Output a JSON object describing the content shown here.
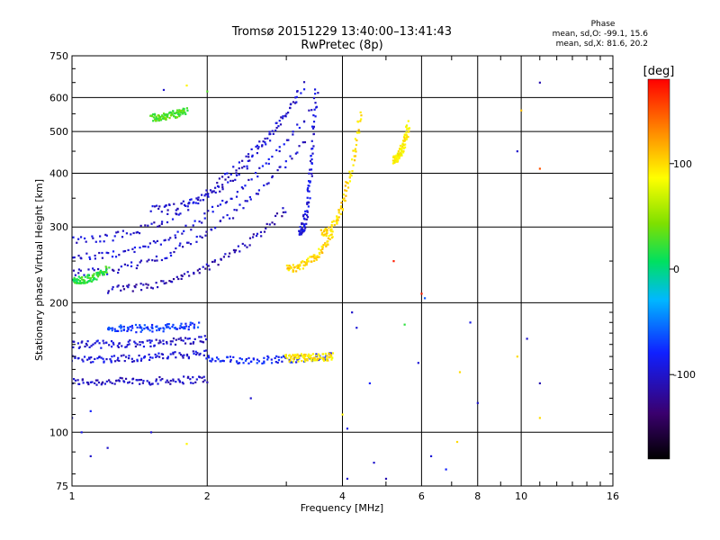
{
  "header": {
    "title_line1": "Tromsø 20151229 13:40:00–13:41:43",
    "title_line2": "RwPretec (8p)"
  },
  "stats": {
    "heading": "Phase",
    "line_o": "mean, sd,O: -99.1, 15.6",
    "line_x": "mean, sd,X:  81.6, 20.2"
  },
  "chart_data": {
    "type": "scatter",
    "xlabel": "Frequency [MHz]",
    "ylabel": "Stationary phase Virtual Height [km]",
    "x_scale": "log",
    "y_scale": "log",
    "xlim": [
      1,
      16
    ],
    "ylim": [
      75,
      750
    ],
    "x_ticks": [
      1,
      2,
      4,
      6,
      8,
      10,
      16
    ],
    "x_tick_labels": [
      "1",
      "2",
      "4",
      "6",
      "8",
      "10",
      "16"
    ],
    "y_ticks": [
      75,
      100,
      200,
      300,
      400,
      500,
      600,
      750
    ],
    "y_tick_labels": [
      "75",
      "100",
      "200",
      "300",
      "400",
      "500",
      "600",
      "750"
    ],
    "grid": true,
    "colorbar": {
      "label": "[deg]",
      "range": [
        -180,
        180
      ],
      "ticks": [
        100,
        0,
        -100
      ],
      "tick_labels": [
        "100",
        "0",
        "-100"
      ]
    },
    "traces": [
      {
        "f0": 1.0,
        "f1": 2.0,
        "h0": 131,
        "h1": 133,
        "phase": -105
      },
      {
        "f0": 1.0,
        "f1": 2.0,
        "h0": 148,
        "h1": 153,
        "phase": -95
      },
      {
        "f0": 1.0,
        "f1": 2.0,
        "h0": 160,
        "h1": 165,
        "phase": -100
      },
      {
        "f0": 1.2,
        "f1": 1.9,
        "h0": 174,
        "h1": 177,
        "phase": -70
      },
      {
        "f0": 2.0,
        "f1": 3.8,
        "h0": 147,
        "h1": 150,
        "phase": -80
      },
      {
        "f0": 3.0,
        "f1": 3.8,
        "h0": 149,
        "h1": 150,
        "phase": 95
      },
      {
        "f0": 1.0,
        "f1": 3.3,
        "h0": 235,
        "h1": 480,
        "phase": -100
      },
      {
        "f0": 1.0,
        "f1": 3.4,
        "h0": 255,
        "h1": 560,
        "phase": -95
      },
      {
        "f0": 1.0,
        "f1": 3.3,
        "h0": 280,
        "h1": 640,
        "phase": -100
      },
      {
        "f0": 1.2,
        "f1": 3.0,
        "h0": 215,
        "h1": 330,
        "phase": -110
      },
      {
        "f0": 1.5,
        "f1": 3.2,
        "h0": 330,
        "h1": 620,
        "phase": -100
      },
      {
        "f0": 3.2,
        "f1": 3.5,
        "h0": 290,
        "h1": 630,
        "phase": -95
      },
      {
        "f0": 3.6,
        "f1": 4.4,
        "h0": 290,
        "h1": 560,
        "phase": 100
      },
      {
        "f0": 3.0,
        "f1": 3.8,
        "h0": 240,
        "h1": 290,
        "phase": 100
      },
      {
        "f0": 1.0,
        "f1": 1.2,
        "h0": 225,
        "h1": 240,
        "phase": 20
      },
      {
        "f0": 1.5,
        "f1": 1.8,
        "h0": 540,
        "h1": 560,
        "phase": 30
      },
      {
        "f0": 5.2,
        "f1": 5.6,
        "h0": 430,
        "h1": 520,
        "phase": 90
      }
    ],
    "scatter_points": [
      {
        "x": 11.0,
        "y": 650,
        "phase": -110
      },
      {
        "x": 10.0,
        "y": 560,
        "phase": 110
      },
      {
        "x": 9.8,
        "y": 450,
        "phase": -100
      },
      {
        "x": 11.0,
        "y": 410,
        "phase": 150
      },
      {
        "x": 5.2,
        "y": 250,
        "phase": 170
      },
      {
        "x": 6.0,
        "y": 210,
        "phase": 170
      },
      {
        "x": 6.1,
        "y": 205,
        "phase": -60
      },
      {
        "x": 5.5,
        "y": 178,
        "phase": 20
      },
      {
        "x": 4.3,
        "y": 175,
        "phase": -95
      },
      {
        "x": 4.2,
        "y": 190,
        "phase": -100
      },
      {
        "x": 4.6,
        "y": 130,
        "phase": -80
      },
      {
        "x": 7.7,
        "y": 180,
        "phase": -90
      },
      {
        "x": 5.9,
        "y": 145,
        "phase": -95
      },
      {
        "x": 7.3,
        "y": 138,
        "phase": 100
      },
      {
        "x": 7.2,
        "y": 95,
        "phase": 100
      },
      {
        "x": 8.0,
        "y": 117,
        "phase": -100
      },
      {
        "x": 9.8,
        "y": 150,
        "phase": 100
      },
      {
        "x": 10.3,
        "y": 165,
        "phase": -100
      },
      {
        "x": 11.0,
        "y": 130,
        "phase": -110
      },
      {
        "x": 11.0,
        "y": 108,
        "phase": 100
      },
      {
        "x": 6.3,
        "y": 88,
        "phase": -95
      },
      {
        "x": 6.8,
        "y": 82,
        "phase": -80
      },
      {
        "x": 4.1,
        "y": 102,
        "phase": -90
      },
      {
        "x": 4.0,
        "y": 110,
        "phase": 90
      },
      {
        "x": 4.7,
        "y": 85,
        "phase": -100
      },
      {
        "x": 5.0,
        "y": 78,
        "phase": -110
      },
      {
        "x": 4.1,
        "y": 78,
        "phase": -100
      },
      {
        "x": 2.0,
        "y": 620,
        "phase": 30
      },
      {
        "x": 1.8,
        "y": 640,
        "phase": 90
      },
      {
        "x": 1.6,
        "y": 625,
        "phase": -100
      },
      {
        "x": 1.1,
        "y": 88,
        "phase": -100
      },
      {
        "x": 1.2,
        "y": 92,
        "phase": -100
      },
      {
        "x": 1.5,
        "y": 100,
        "phase": -100
      },
      {
        "x": 1.8,
        "y": 94,
        "phase": 90
      },
      {
        "x": 1.05,
        "y": 100,
        "phase": -90
      },
      {
        "x": 1.0,
        "y": 108,
        "phase": -100
      },
      {
        "x": 1.1,
        "y": 112,
        "phase": -80
      },
      {
        "x": 2.5,
        "y": 120,
        "phase": -100
      }
    ]
  }
}
